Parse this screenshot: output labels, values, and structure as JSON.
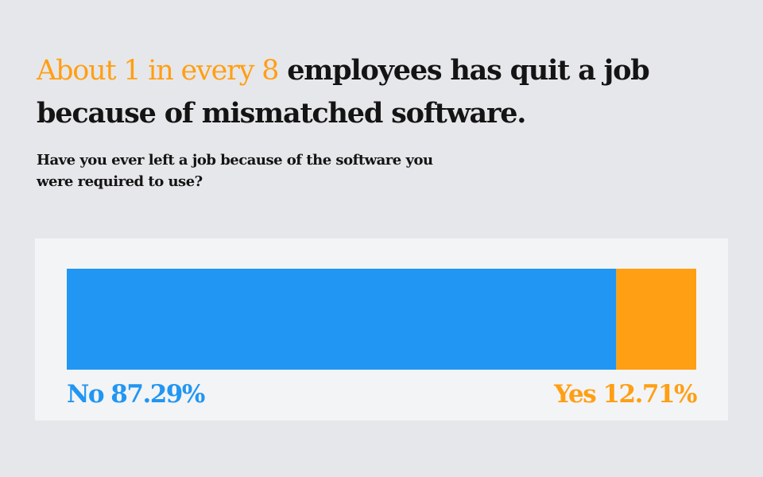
{
  "colors": {
    "background": "#e6e7ea",
    "panel": "#f3f4f5",
    "text": "#141414",
    "accent": "#ff9f14",
    "blue": "#2196f3"
  },
  "headline": {
    "highlight": "About 1 in every 8",
    "rest": " employees has quit a job because of mismatched software."
  },
  "question": "Have you ever left a job because of the software you were required to use?",
  "chart_data": {
    "type": "bar",
    "orientation": "horizontal-stacked",
    "title": "About 1 in every 8 employees has quit a job because of mismatched software.",
    "subtitle": "Have you ever left a job because of the software you were required to use?",
    "xlim": [
      0,
      100
    ],
    "grid": false,
    "legend": "none",
    "series": [
      {
        "name": "No",
        "value": 87.29,
        "label": "No 87.29%",
        "color": "#2196f3",
        "label_align": "left"
      },
      {
        "name": "Yes",
        "value": 12.71,
        "label": "Yes 12.71%",
        "color": "#ff9f14",
        "label_align": "right"
      }
    ]
  }
}
